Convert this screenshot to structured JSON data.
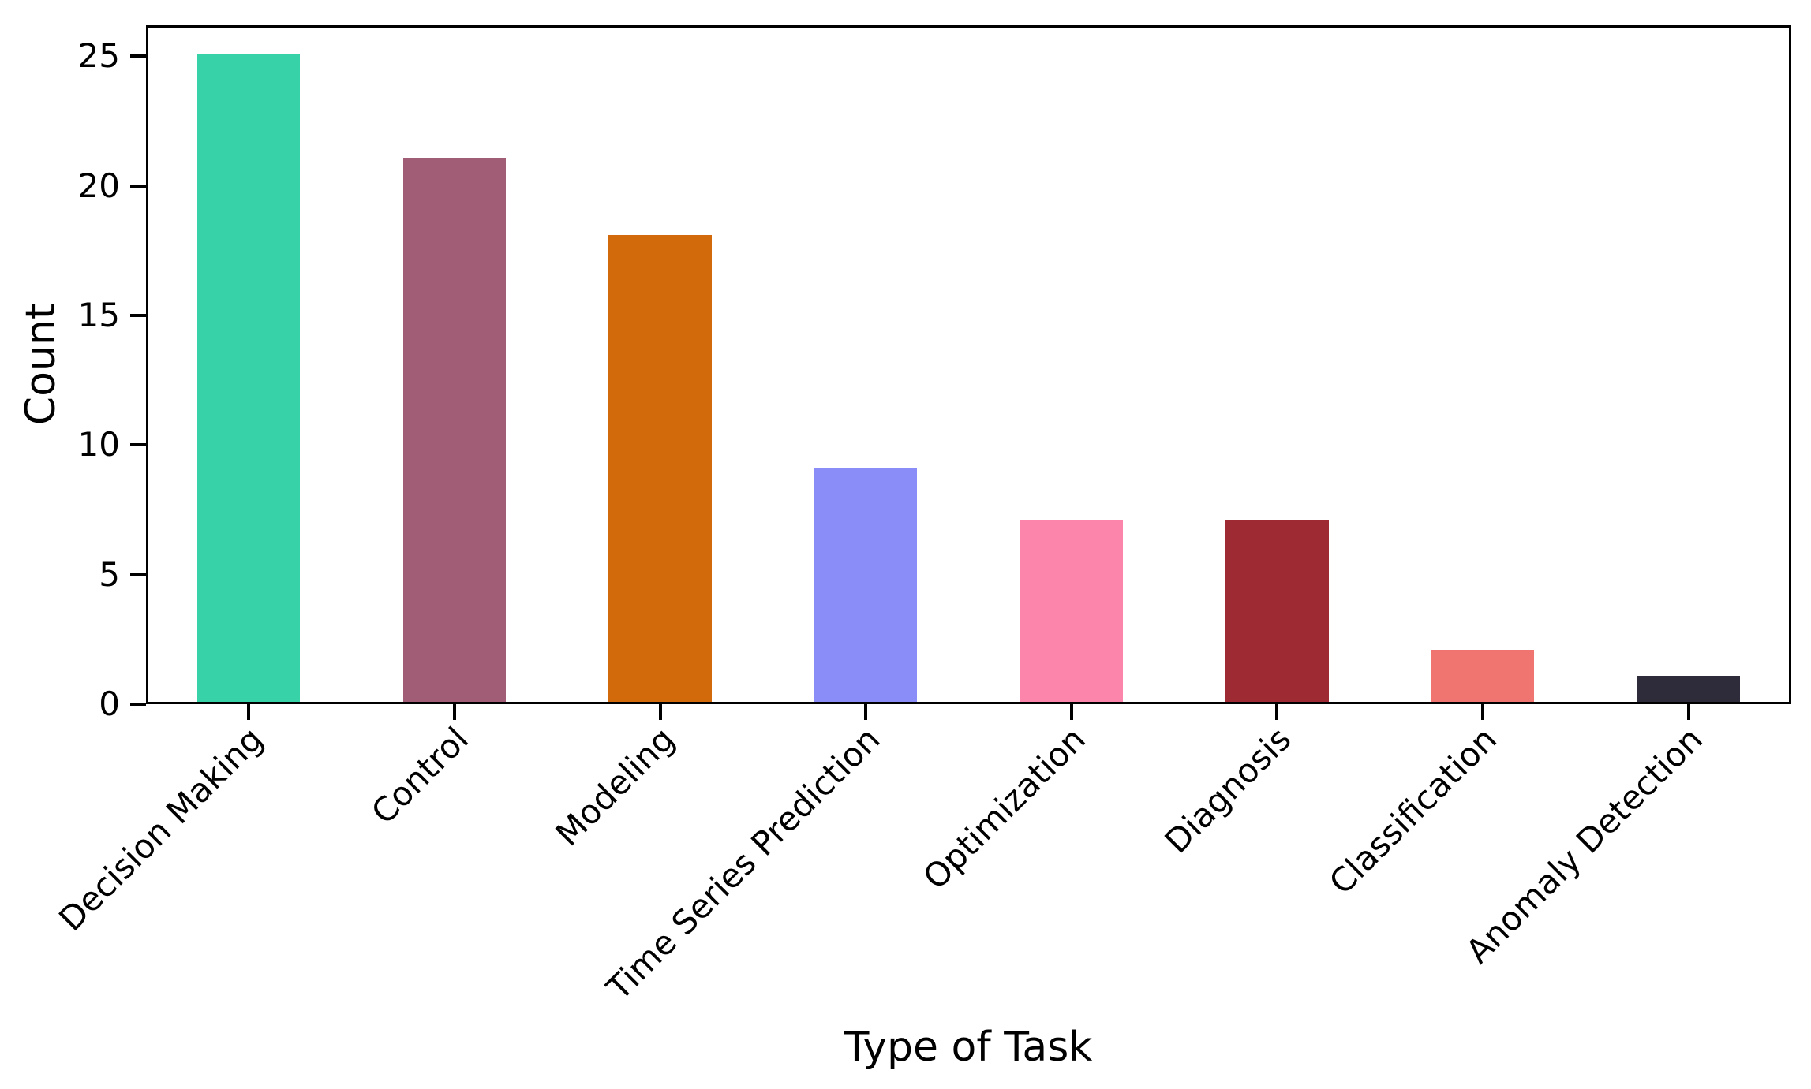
{
  "figure": {
    "background_color": "#ffffff",
    "frame_color": "#000000",
    "text_color": "#000000"
  },
  "chart_data": {
    "type": "bar",
    "title": "",
    "xlabel": "Type of Task",
    "ylabel": "Count",
    "categories": [
      "Decision Making",
      "Control",
      "Modeling",
      "Time Series Prediction",
      "Optimization",
      "Diagnosis",
      "Classification",
      "Anomaly Detection"
    ],
    "values": [
      25,
      21,
      18,
      9,
      7,
      7,
      2,
      1
    ],
    "bar_colors": [
      "#38D2A8",
      "#A15C76",
      "#D2690B",
      "#8A8DF8",
      "#FC85AC",
      "#9E2B33",
      "#F07470",
      "#2E2B3A"
    ],
    "yticks": [
      0,
      5,
      10,
      15,
      20,
      25
    ],
    "ylim": [
      0,
      26.2
    ],
    "grid": false,
    "legend": "none",
    "bar_width_fraction": 0.5,
    "x_tick_rotation_deg": 45
  }
}
